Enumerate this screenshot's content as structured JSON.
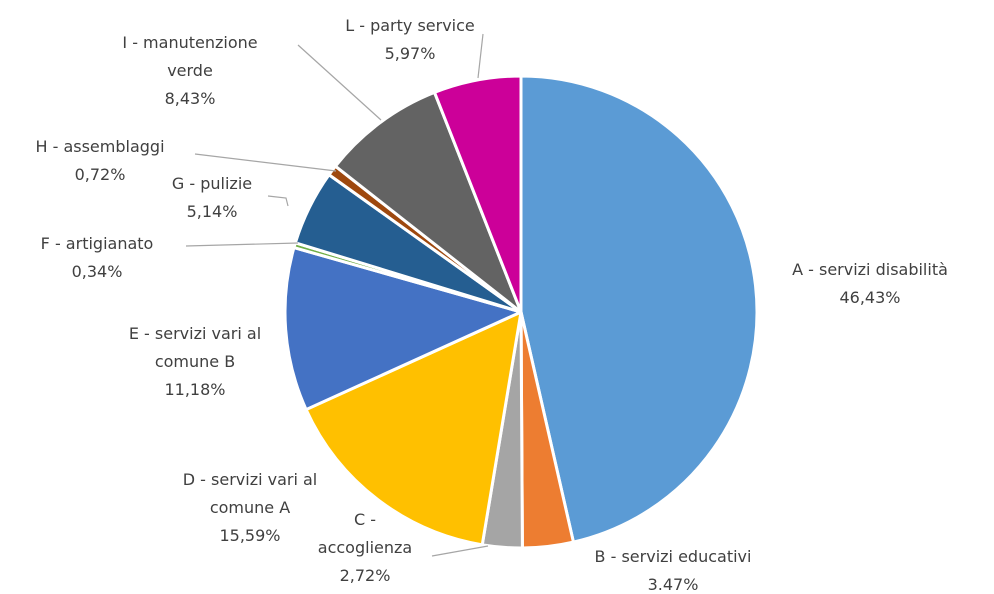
{
  "chart_data": {
    "type": "pie",
    "categories": [
      "A - servizi disabilità",
      "B - servizi educativi",
      "C - accoglienza",
      "D - servizi vari al comune A",
      "E - servizi vari al comune B",
      "F - artigianato",
      "G - pulizie",
      "H - assemblaggi",
      "I - manutenzione verde",
      "L - party service"
    ],
    "values": [
      46.43,
      3.47,
      2.72,
      15.59,
      11.18,
      0.34,
      5.14,
      0.72,
      8.43,
      5.97
    ],
    "value_labels": [
      "46,43%",
      "3.47%",
      "2,72%",
      "15,59%",
      "11,18%",
      "0,34%",
      "5,14%",
      "0,72%",
      "8,43%",
      "5,97%"
    ],
    "colors": [
      "#5b9bd5",
      "#ed7d31",
      "#a5a5a5",
      "#ffc000",
      "#4472c4",
      "#70ad47",
      "#255e91",
      "#9e480e",
      "#636363",
      "#cc0099"
    ]
  }
}
